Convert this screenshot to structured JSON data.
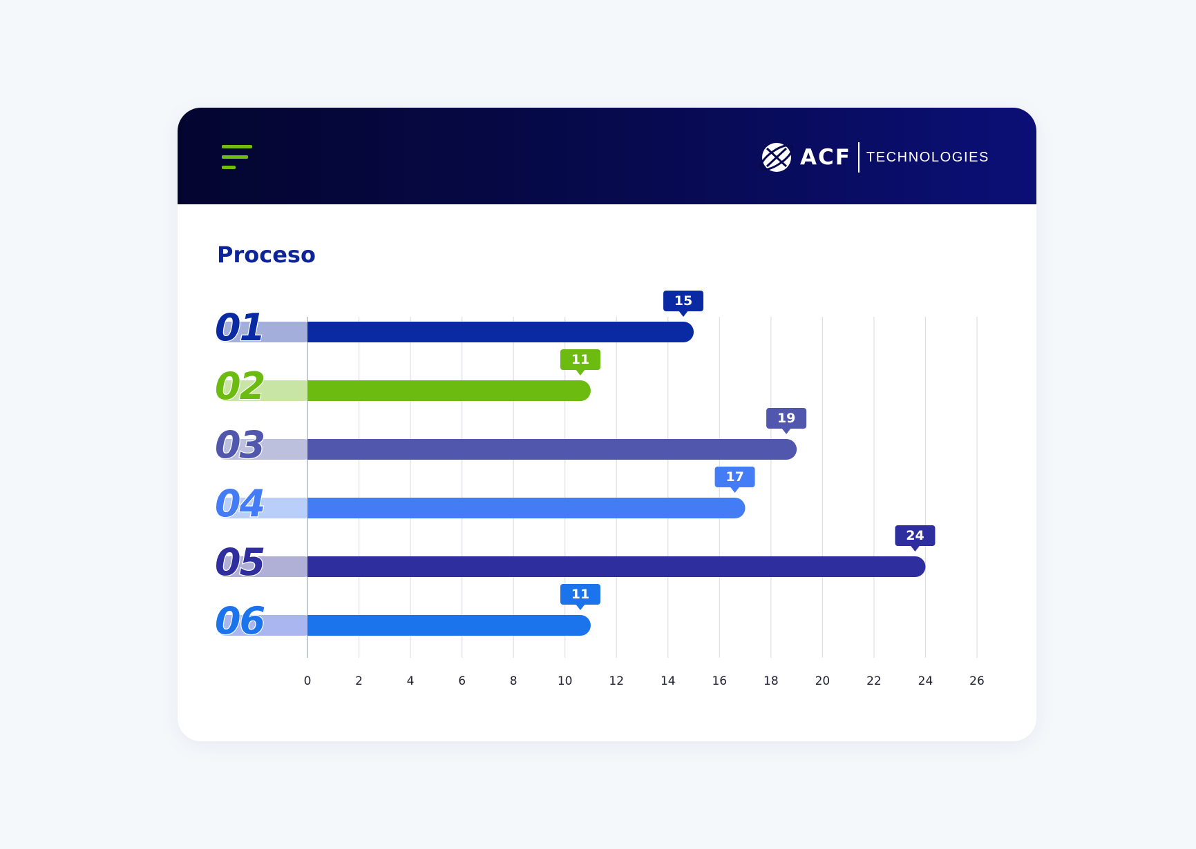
{
  "header": {
    "menu_icon": "hamburger-menu-icon",
    "logo": {
      "mark": "globe-orbit-icon",
      "wordmark": "ACF",
      "tagline": "TECHNOLOGIES"
    },
    "colors": {
      "menu": "#6fbe0f",
      "background_start": "#04052f",
      "background_end": "#0b0f76"
    }
  },
  "chart_data": {
    "type": "bar",
    "orientation": "horizontal",
    "title": "Proceso",
    "xlabel": "",
    "ylabel": "",
    "categories": [
      "01",
      "02",
      "03",
      "04",
      "05",
      "06"
    ],
    "values": [
      15,
      11,
      19,
      17,
      24,
      11
    ],
    "data_labels": [
      "15",
      "11",
      "19",
      "17",
      "24",
      "11"
    ],
    "bar_colors": [
      "#0a2aa3",
      "#6bbb10",
      "#5157ad",
      "#447cf6",
      "#2e2e9e",
      "#1c74ec"
    ],
    "track_colors": [
      "#a3aedb",
      "#c8e5a6",
      "#bcc0dd",
      "#b9cffa",
      "#b0b0d6",
      "#a9b6f0"
    ],
    "xlim": [
      0,
      26
    ],
    "xticks": [
      0,
      2,
      4,
      6,
      8,
      10,
      12,
      14,
      16,
      18,
      20,
      22,
      24,
      26
    ],
    "grid": true,
    "legend": "none"
  }
}
